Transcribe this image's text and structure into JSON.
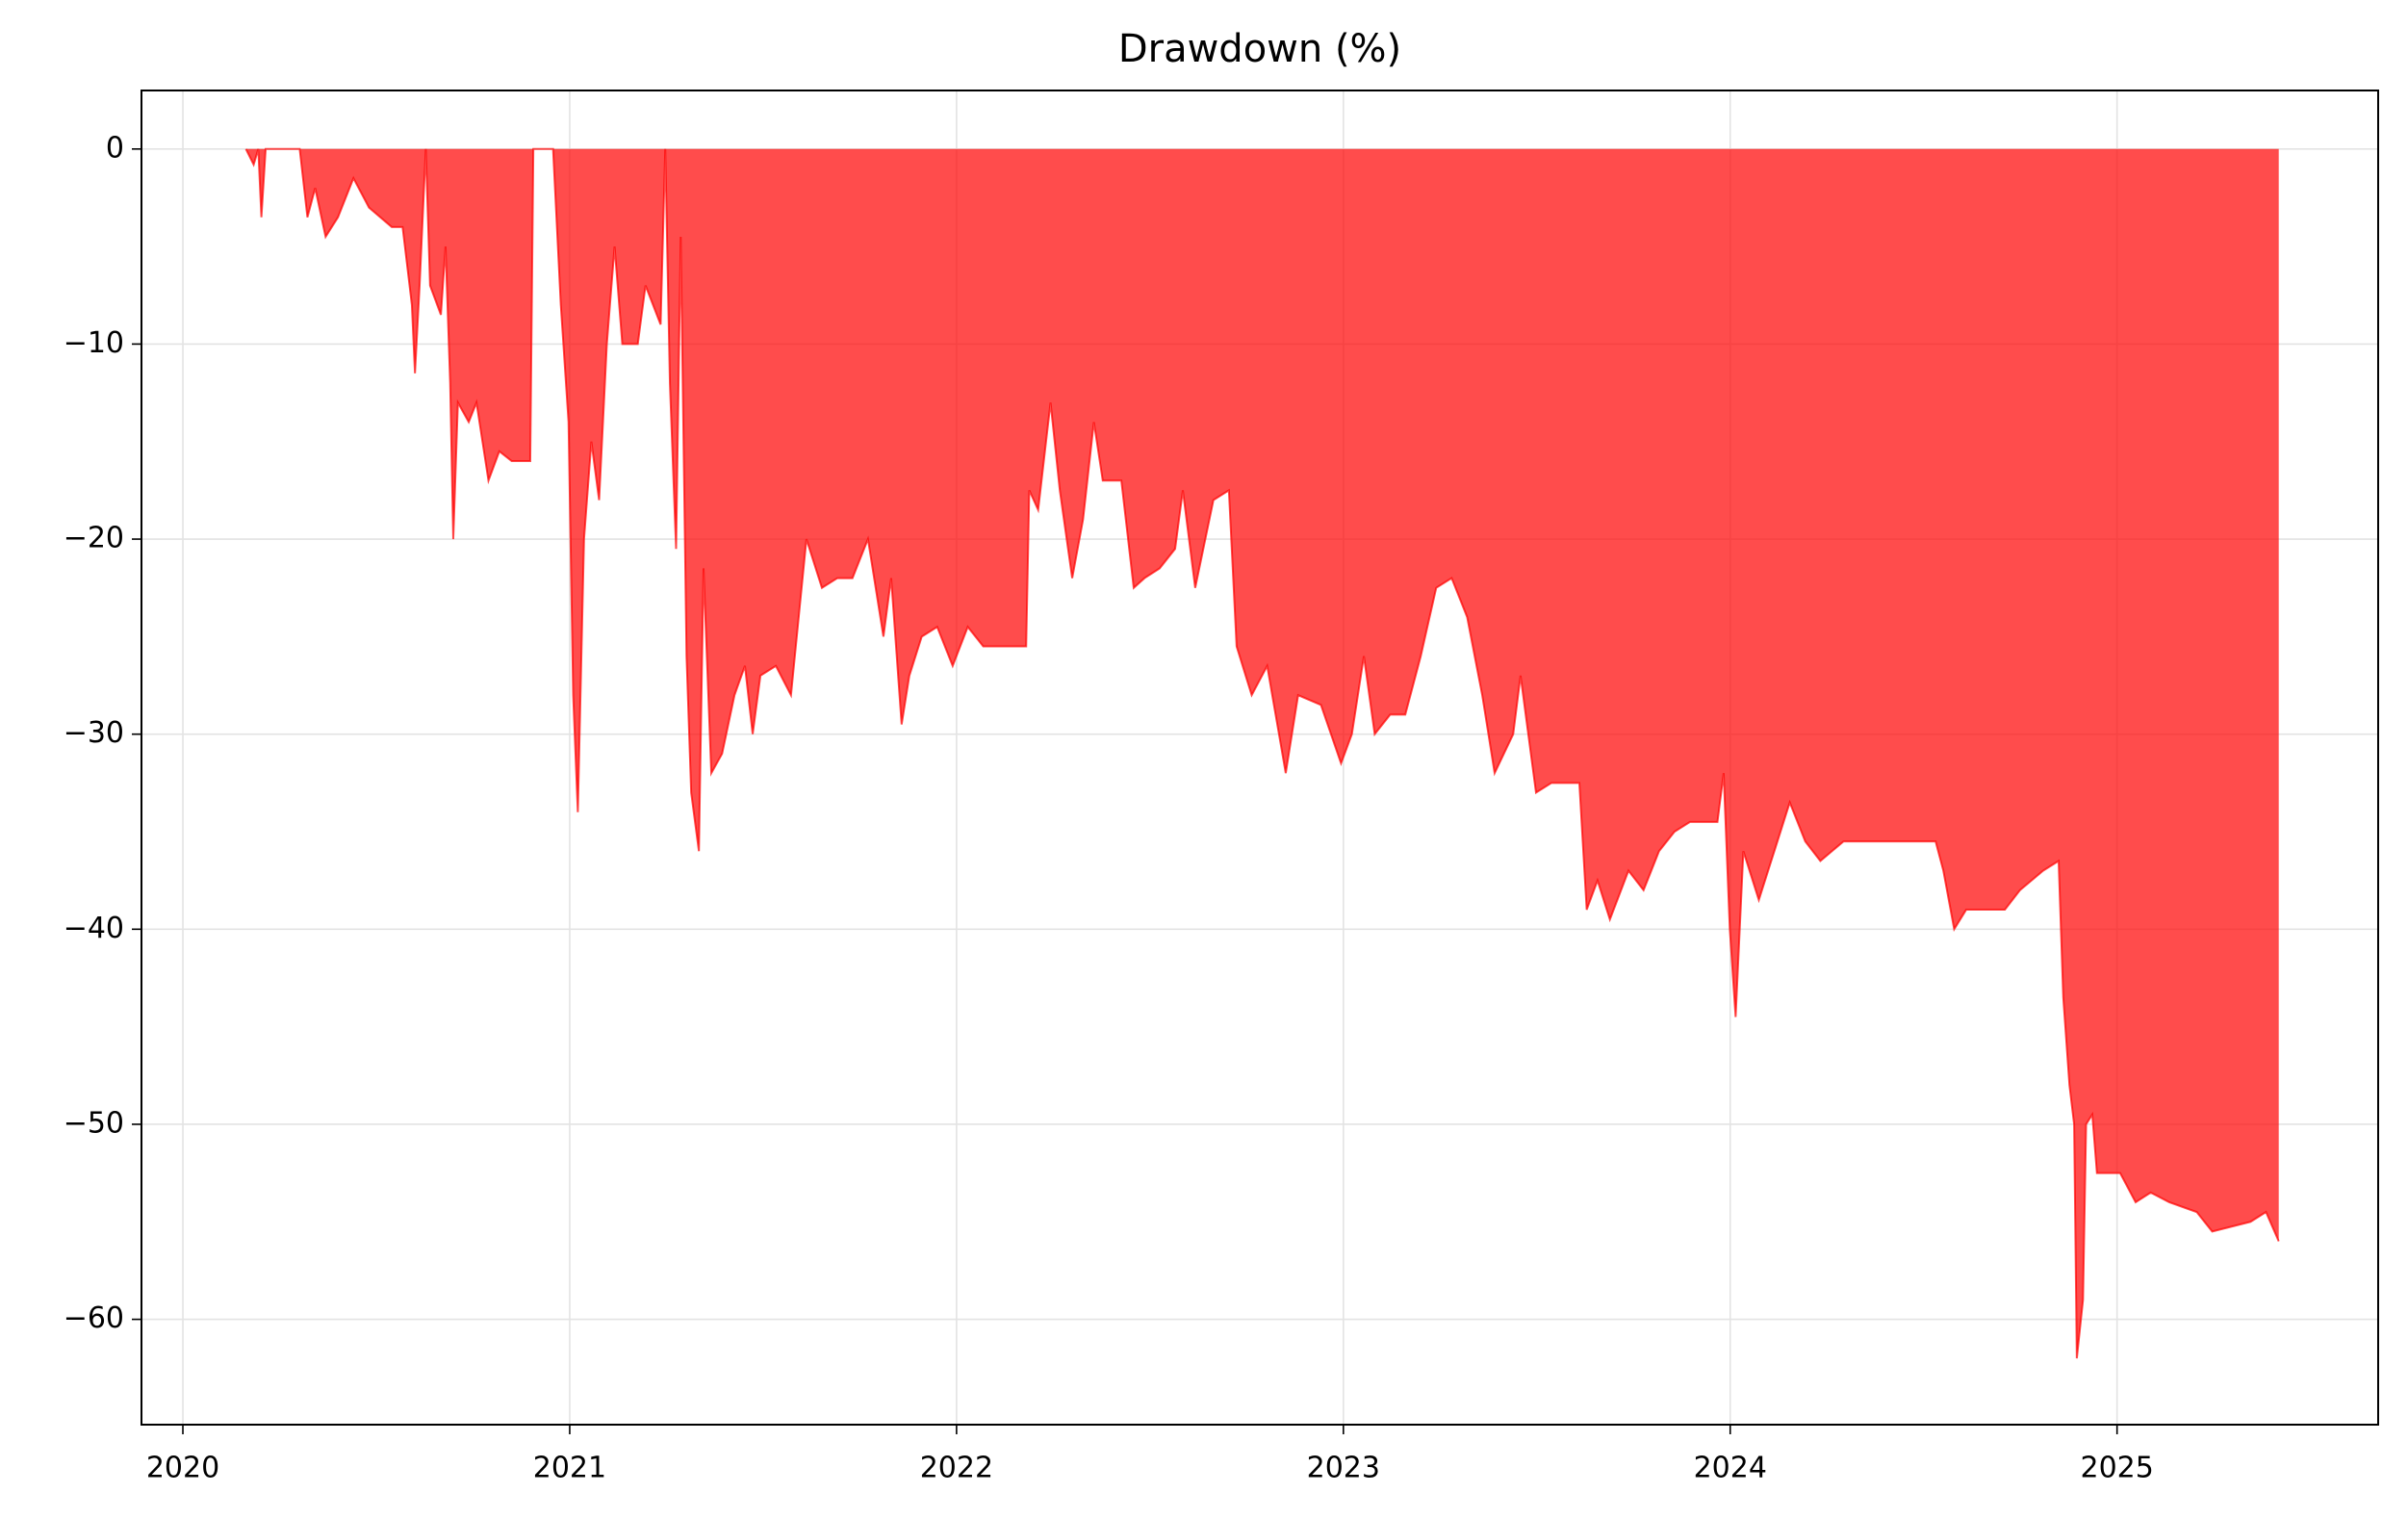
{
  "chart_data": {
    "type": "area",
    "title": "Drawdown (%)",
    "x": [
      2020.163,
      2020.183,
      2020.195,
      2020.203,
      2020.214,
      2020.302,
      2020.322,
      2020.342,
      2020.369,
      2020.401,
      2020.441,
      2020.481,
      2020.54,
      2020.568,
      2020.592,
      2020.6,
      2020.612,
      2020.628,
      2020.639,
      2020.667,
      2020.679,
      2020.691,
      2020.699,
      2020.711,
      2020.739,
      2020.759,
      2020.79,
      2020.818,
      2020.85,
      2020.898,
      2020.906,
      2020.957,
      2020.977,
      2020.997,
      2021.009,
      2021.021,
      2021.037,
      2021.056,
      2021.076,
      2021.096,
      2021.116,
      2021.136,
      2021.176,
      2021.196,
      2021.235,
      2021.247,
      2021.259,
      2021.275,
      2021.287,
      2021.302,
      2021.314,
      2021.334,
      2021.346,
      2021.366,
      2021.394,
      2021.426,
      2021.453,
      2021.473,
      2021.493,
      2021.533,
      2021.572,
      2021.612,
      2021.652,
      2021.692,
      2021.731,
      2021.771,
      2021.811,
      2021.831,
      2021.858,
      2021.878,
      2021.91,
      2021.95,
      2021.99,
      2022.029,
      2022.069,
      2022.18,
      2022.188,
      2022.211,
      2022.243,
      2022.267,
      2022.299,
      2022.327,
      2022.355,
      2022.378,
      2022.426,
      2022.458,
      2022.486,
      2022.525,
      2022.565,
      2022.585,
      2022.617,
      2022.664,
      2022.704,
      2022.724,
      2022.763,
      2022.803,
      2022.851,
      2022.883,
      2022.942,
      2022.994,
      2023.022,
      2023.053,
      2023.081,
      2023.121,
      2023.16,
      2023.2,
      2023.24,
      2023.28,
      2023.32,
      2023.359,
      2023.391,
      2023.439,
      2023.458,
      2023.498,
      2023.538,
      2023.61,
      2023.629,
      2023.657,
      2023.689,
      2023.737,
      2023.776,
      2023.816,
      2023.856,
      2023.896,
      2023.967,
      2023.983,
      2023.999,
      2024.014,
      2024.034,
      2024.074,
      2024.114,
      2024.154,
      2024.194,
      2024.233,
      2024.293,
      2024.531,
      2024.551,
      2024.579,
      2024.61,
      2024.71,
      2024.749,
      2024.809,
      2024.849,
      2024.861,
      2024.877,
      2024.889,
      2024.896,
      2024.912,
      2024.92,
      2024.936,
      2024.948,
      2025.008,
      2025.048,
      2025.087,
      2025.135,
      2025.206,
      2025.246,
      2025.345,
      2025.385,
      2025.418
    ],
    "values": [
      0,
      -0.8,
      0,
      -3.5,
      0,
      0,
      -3.5,
      -2,
      -4.5,
      -3.5,
      -1.5,
      -3,
      -4,
      -4,
      -8,
      -11.5,
      -7,
      0,
      -7,
      -8.5,
      -5,
      -12,
      -20,
      -13,
      -14,
      -13,
      -17,
      -15.5,
      -16,
      -16,
      0,
      0,
      -8,
      -14,
      -28,
      -34,
      -20,
      -15,
      -18,
      -10,
      -5,
      -10,
      -10,
      -7,
      -9,
      0,
      -12,
      -20.5,
      -4.5,
      -26,
      -33,
      -36,
      -21.5,
      -32,
      -31,
      -28,
      -26.5,
      -30,
      -27,
      -26.5,
      -28,
      -20,
      -22.5,
      -22,
      -22,
      -20,
      -25,
      -22,
      -29.5,
      -27,
      -25,
      -24.5,
      -26.5,
      -24.5,
      -25.5,
      -25.5,
      -17.5,
      -18.5,
      -13,
      -17.5,
      -22,
      -19,
      -14,
      -17,
      -17,
      -22.5,
      -22,
      -21.5,
      -20.5,
      -17.5,
      -22.5,
      -18,
      -17.5,
      -25.5,
      -28,
      -26.5,
      -32,
      -28,
      -28.5,
      -31.5,
      -30,
      -26,
      -30,
      -29,
      -29,
      -26,
      -22.5,
      -22,
      -24,
      -28,
      -32,
      -30,
      -27,
      -33,
      -32.5,
      -32.5,
      -39,
      -37.5,
      -39.5,
      -37,
      -38,
      -36,
      -35,
      -34.5,
      -34.5,
      -32,
      -40,
      -44.5,
      -36,
      -38.5,
      -36,
      -33.5,
      -35.5,
      -36.5,
      -35.5,
      -35.5,
      -37,
      -40,
      -39,
      -39,
      -38,
      -37,
      -36.5,
      -43.5,
      -48,
      -50,
      -62,
      -59,
      -50,
      -49.5,
      -52.5,
      -52.5,
      -54,
      -53.5,
      -54,
      -54.5,
      -55.5,
      -55,
      -54.5,
      -56
    ],
    "color": "#ff0000",
    "xlim": [
      2019.893,
      2025.675
    ],
    "xticks": [
      2020,
      2021,
      2022,
      2023,
      2024,
      2025
    ],
    "ylim": [
      -65.4,
      3
    ],
    "yticks": [
      {
        "value": -60,
        "label": "−60"
      },
      {
        "value": -50,
        "label": "−50"
      },
      {
        "value": -40,
        "label": "−40"
      },
      {
        "value": -30,
        "label": "−30"
      },
      {
        "value": -20,
        "label": "−20"
      },
      {
        "value": -10,
        "label": "−10"
      },
      0
    ],
    "grid": true
  }
}
